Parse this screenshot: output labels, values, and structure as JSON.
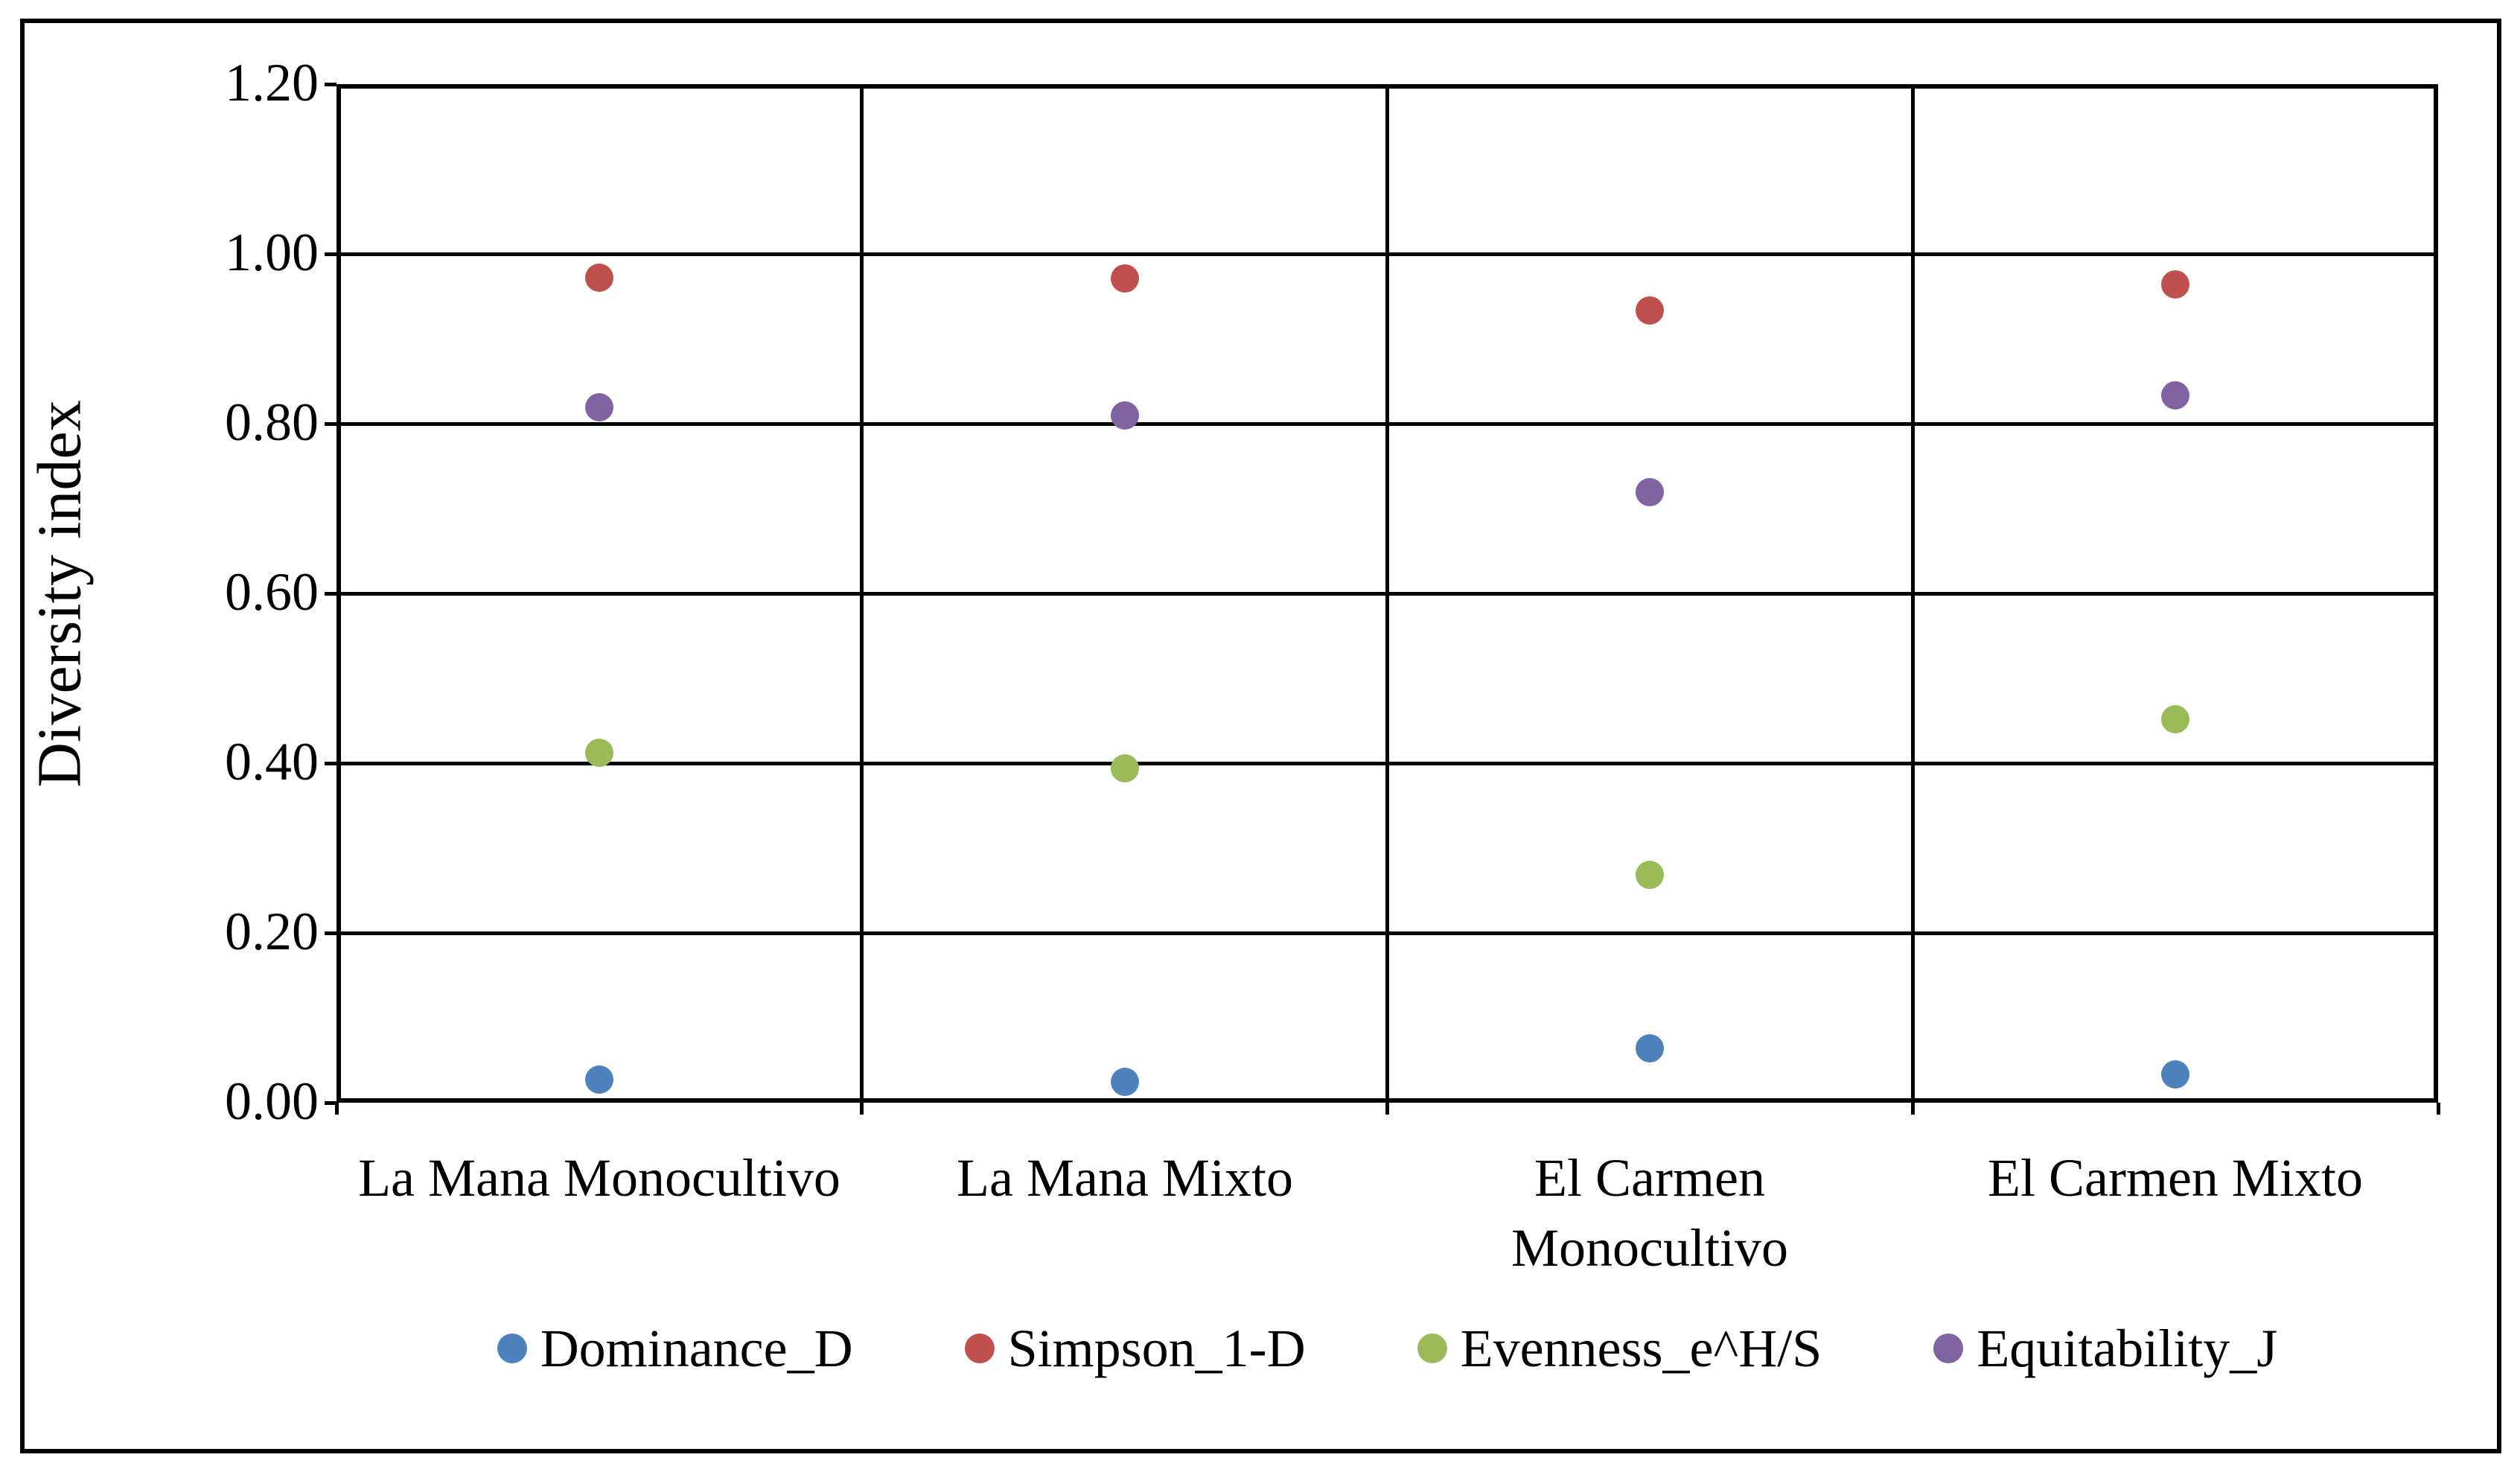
{
  "chart_data": {
    "type": "scatter",
    "title": "",
    "xlabel": "",
    "ylabel": "Diversity index",
    "ylim": [
      0.0,
      1.2
    ],
    "ytick_step": 0.2,
    "ytick_labels": [
      "0.00",
      "0.20",
      "0.40",
      "0.60",
      "0.80",
      "1.00",
      "1.20"
    ],
    "grid": "horizontal major gridlines plus vertical category separators, full box border",
    "legend_position": "bottom",
    "categories": [
      "La Mana Monocultivo",
      "La Mana Mixto",
      "El Carmen Monocultivo",
      "El Carmen Mixto"
    ],
    "category_label_lines": [
      [
        "La Mana Monocultivo"
      ],
      [
        "La Mana Mixto"
      ],
      [
        "El Carmen",
        "Monocultivo"
      ],
      [
        "El Carmen Mixto"
      ]
    ],
    "series": [
      {
        "name": "Dominance_D",
        "color": "#4F81BD",
        "values": [
          0.027,
          0.025,
          0.064,
          0.033
        ]
      },
      {
        "name": "Simpson_1-D",
        "color": "#C0504D",
        "values": [
          0.972,
          0.971,
          0.933,
          0.964
        ]
      },
      {
        "name": "Evenness_e^H/S",
        "color": "#9BBB59",
        "values": [
          0.412,
          0.394,
          0.268,
          0.452
        ]
      },
      {
        "name": "Equitability_J",
        "color": "#8064A2",
        "values": [
          0.819,
          0.81,
          0.719,
          0.833
        ]
      }
    ],
    "colors": {
      "axis_and_grid": "#000000",
      "background": "#FFFFFF"
    }
  }
}
